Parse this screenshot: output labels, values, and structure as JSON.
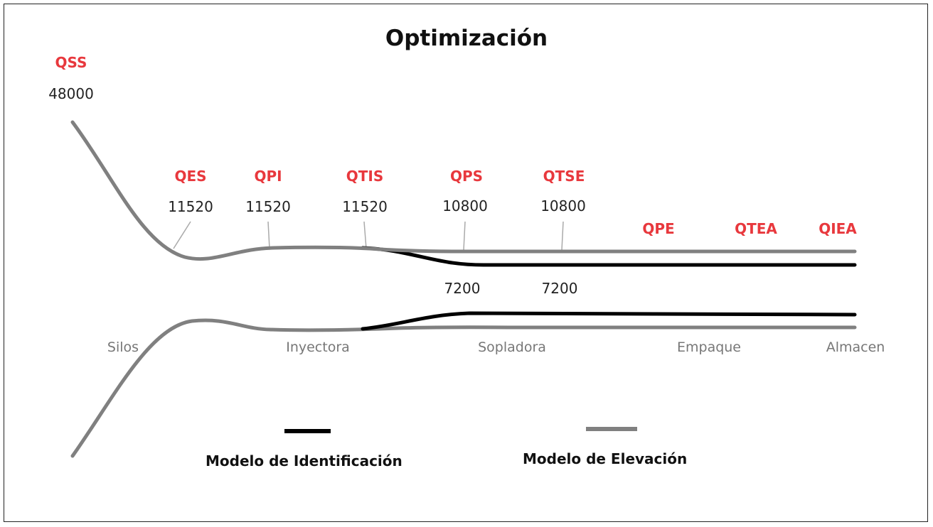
{
  "title": "Optimización",
  "nodes": [
    {
      "code": "QSS",
      "value": "48000",
      "value_lower": ""
    },
    {
      "code": "QES",
      "value": "11520",
      "value_lower": ""
    },
    {
      "code": "QPI",
      "value": "11520",
      "value_lower": ""
    },
    {
      "code": "QTIS",
      "value": "11520",
      "value_lower": ""
    },
    {
      "code": "QPS",
      "value": "10800",
      "value_lower": "7200"
    },
    {
      "code": "QTSE",
      "value": "10800",
      "value_lower": "7200"
    },
    {
      "code": "QPE",
      "value": "",
      "value_lower": ""
    },
    {
      "code": "QTEA",
      "value": "",
      "value_lower": ""
    },
    {
      "code": "QIEA",
      "value": "",
      "value_lower": ""
    }
  ],
  "stages": [
    "Silos",
    "Inyectora",
    "Sopladora",
    "Empaque",
    "Almacen"
  ],
  "legend": {
    "identificacion": "Modelo de Identificación",
    "elevacion": "Modelo de Elevación"
  },
  "colors": {
    "identificacion": "#000000",
    "elevacion": "#808080",
    "code": "#e8383d"
  }
}
